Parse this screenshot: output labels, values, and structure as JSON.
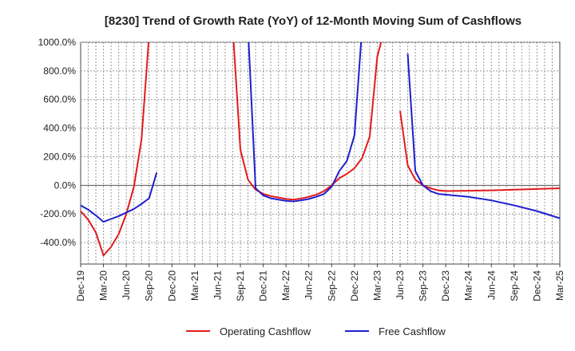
{
  "chart_data": {
    "type": "line",
    "title": "[8230]  Trend of Growth Rate (YoY) of 12-Month Moving Sum of Cashflows",
    "xlabel": "",
    "ylabel": "",
    "ylim": [
      -550,
      1000
    ],
    "y_ticks": [
      1000,
      800,
      600,
      400,
      200,
      0,
      -200,
      -400
    ],
    "y_tick_labels": [
      "1000.0%",
      "800.0%",
      "600.0%",
      "400.0%",
      "200.0%",
      "0.0%",
      "-200.0%",
      "-400.0%"
    ],
    "x_tick_labels": [
      "Dec-19",
      "Mar-20",
      "Jun-20",
      "Sep-20",
      "Dec-20",
      "Mar-21",
      "Jun-21",
      "Sep-21",
      "Dec-21",
      "Mar-22",
      "Jun-22",
      "Sep-22",
      "Dec-22",
      "Mar-23",
      "Jun-23",
      "Sep-23",
      "Dec-23",
      "Mar-24",
      "Jun-24",
      "Sep-24",
      "Dec-24",
      "Mar-25"
    ],
    "x_range_months": [
      0,
      63
    ],
    "grid": true,
    "legend_position": "bottom",
    "series": [
      {
        "name": "Operating Cashflow",
        "color": "#e31a1c",
        "points": [
          [
            0,
            -180
          ],
          [
            1,
            -240
          ],
          [
            2,
            -330
          ],
          [
            3,
            -490
          ],
          [
            4,
            -430
          ],
          [
            5,
            -340
          ],
          [
            6,
            -200
          ],
          [
            7,
            -10
          ],
          [
            8,
            320
          ],
          [
            9,
            1050
          ],
          [
            null,
            null
          ],
          [
            20,
            1100
          ],
          [
            21,
            250
          ],
          [
            22,
            40
          ],
          [
            23,
            -30
          ],
          [
            24,
            -60
          ],
          [
            25,
            -75
          ],
          [
            26,
            -85
          ],
          [
            27,
            -95
          ],
          [
            28,
            -100
          ],
          [
            29,
            -92
          ],
          [
            30,
            -80
          ],
          [
            31,
            -65
          ],
          [
            32,
            -40
          ],
          [
            33,
            0
          ],
          [
            34,
            50
          ],
          [
            35,
            80
          ],
          [
            36,
            120
          ],
          [
            37,
            190
          ],
          [
            38,
            340
          ],
          [
            39,
            900
          ],
          [
            40,
            1100
          ],
          [
            null,
            null
          ],
          [
            42,
            520
          ],
          [
            43,
            140
          ],
          [
            44,
            40
          ],
          [
            45,
            0
          ],
          [
            46,
            -20
          ],
          [
            47,
            -35
          ],
          [
            48,
            -40
          ],
          [
            51,
            -38
          ],
          [
            54,
            -35
          ],
          [
            57,
            -30
          ],
          [
            60,
            -25
          ],
          [
            63,
            -20
          ]
        ]
      },
      {
        "name": "Free Cashflow",
        "color": "#1f1fd1",
        "points": [
          [
            0,
            -140
          ],
          [
            1,
            -170
          ],
          [
            2,
            -210
          ],
          [
            3,
            -255
          ],
          [
            4,
            -235
          ],
          [
            5,
            -215
          ],
          [
            6,
            -190
          ],
          [
            7,
            -165
          ],
          [
            8,
            -130
          ],
          [
            9,
            -90
          ],
          [
            10,
            90
          ],
          [
            null,
            null
          ],
          [
            22,
            1100
          ],
          [
            23,
            -20
          ],
          [
            24,
            -70
          ],
          [
            25,
            -90
          ],
          [
            26,
            -100
          ],
          [
            27,
            -108
          ],
          [
            28,
            -112
          ],
          [
            29,
            -105
          ],
          [
            30,
            -95
          ],
          [
            31,
            -80
          ],
          [
            32,
            -60
          ],
          [
            33,
            -10
          ],
          [
            34,
            100
          ],
          [
            35,
            170
          ],
          [
            36,
            350
          ],
          [
            37,
            1100
          ],
          [
            null,
            null
          ],
          [
            43,
            920
          ],
          [
            44,
            100
          ],
          [
            45,
            0
          ],
          [
            46,
            -40
          ],
          [
            47,
            -60
          ],
          [
            48,
            -65
          ],
          [
            51,
            -80
          ],
          [
            54,
            -105
          ],
          [
            57,
            -140
          ],
          [
            60,
            -180
          ],
          [
            63,
            -230
          ]
        ]
      }
    ]
  }
}
